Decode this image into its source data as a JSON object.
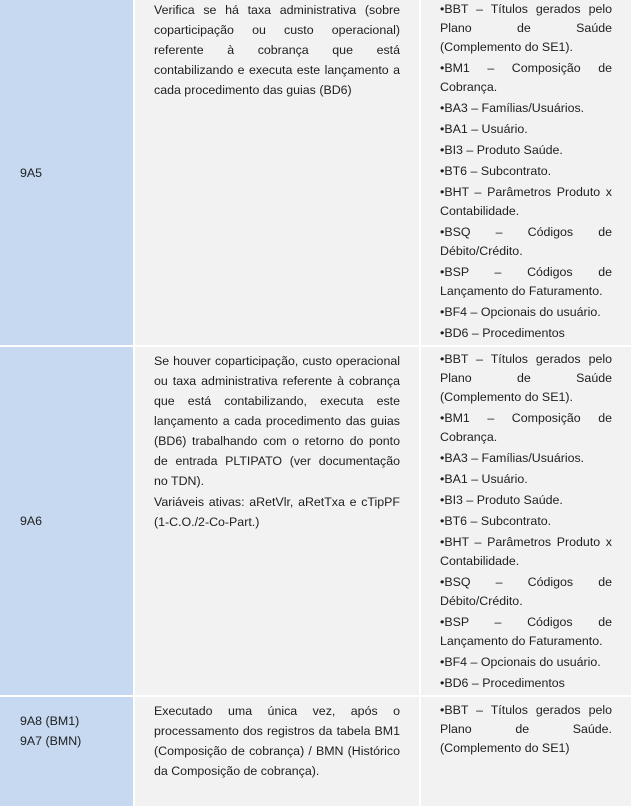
{
  "rows": [
    {
      "ids": [
        "9A5"
      ],
      "description": [
        "Verifica se há taxa administrativa (sobre coparticipação ou custo operacional) referente à cobrança que está contabilizando e executa este lançamento a cada procedimento das guias (BD6)"
      ],
      "tables": [
        "•BBT – Títulos gerados pelo Plano de Saúde (Complemento do SE1).",
        "•BM1 – Composição de Cobrança.",
        "•BA3 – Famílias/Usuários.",
        "•BA1 – Usuário.",
        "•BI3 – Produto Saúde.",
        "•BT6 – Subcontrato.",
        "•BHT – Parâmetros Produto x Contabilidade.",
        "•BSQ – Códigos de Débito/Crédito.",
        "•BSP – Códigos de Lançamento do Faturamento.",
        "•BF4 – Opcionais do usuário.",
        "•BD6 – Procedimentos"
      ]
    },
    {
      "ids": [
        "9A6"
      ],
      "description": [
        "Se houver coparticipação, custo operacional ou taxa administrativa referente à cobrança que está contabilizando, executa este lançamento a cada procedimento das guias (BD6) trabalhando com o retorno do ponto de entrada PLTIPATO (ver documentação no TDN).",
        "Variáveis ativas: aRetVlr, aRetTxa e cTipPF (1-C.O./2-Co-Part.)"
      ],
      "tables": [
        "•BBT – Títulos gerados pelo Plano de Saúde (Complemento do SE1).",
        "•BM1 – Composição de Cobrança.",
        "•BA3 – Famílias/Usuários.",
        "•BA1 – Usuário.",
        "•BI3 – Produto Saúde.",
        "•BT6 – Subcontrato.",
        "•BHT – Parâmetros Produto x Contabilidade.",
        "•BSQ – Códigos de Débito/Crédito.",
        "•BSP – Códigos de Lançamento do Faturamento.",
        "•BF4 – Opcionais do usuário.",
        "•BD6 – Procedimentos"
      ]
    },
    {
      "ids": [
        "9A8 (BM1)",
        "9A7 (BMN)"
      ],
      "description": [
        "Executado uma única vez, após o processamento dos registros da tabela BM1 (Composição de cobrança) / BMN (Histórico da Composição de cobrança)."
      ],
      "tables": [
        "•BBT – Títulos gerados pelo Plano de Saúde. (Complemento do SE1)"
      ]
    }
  ]
}
